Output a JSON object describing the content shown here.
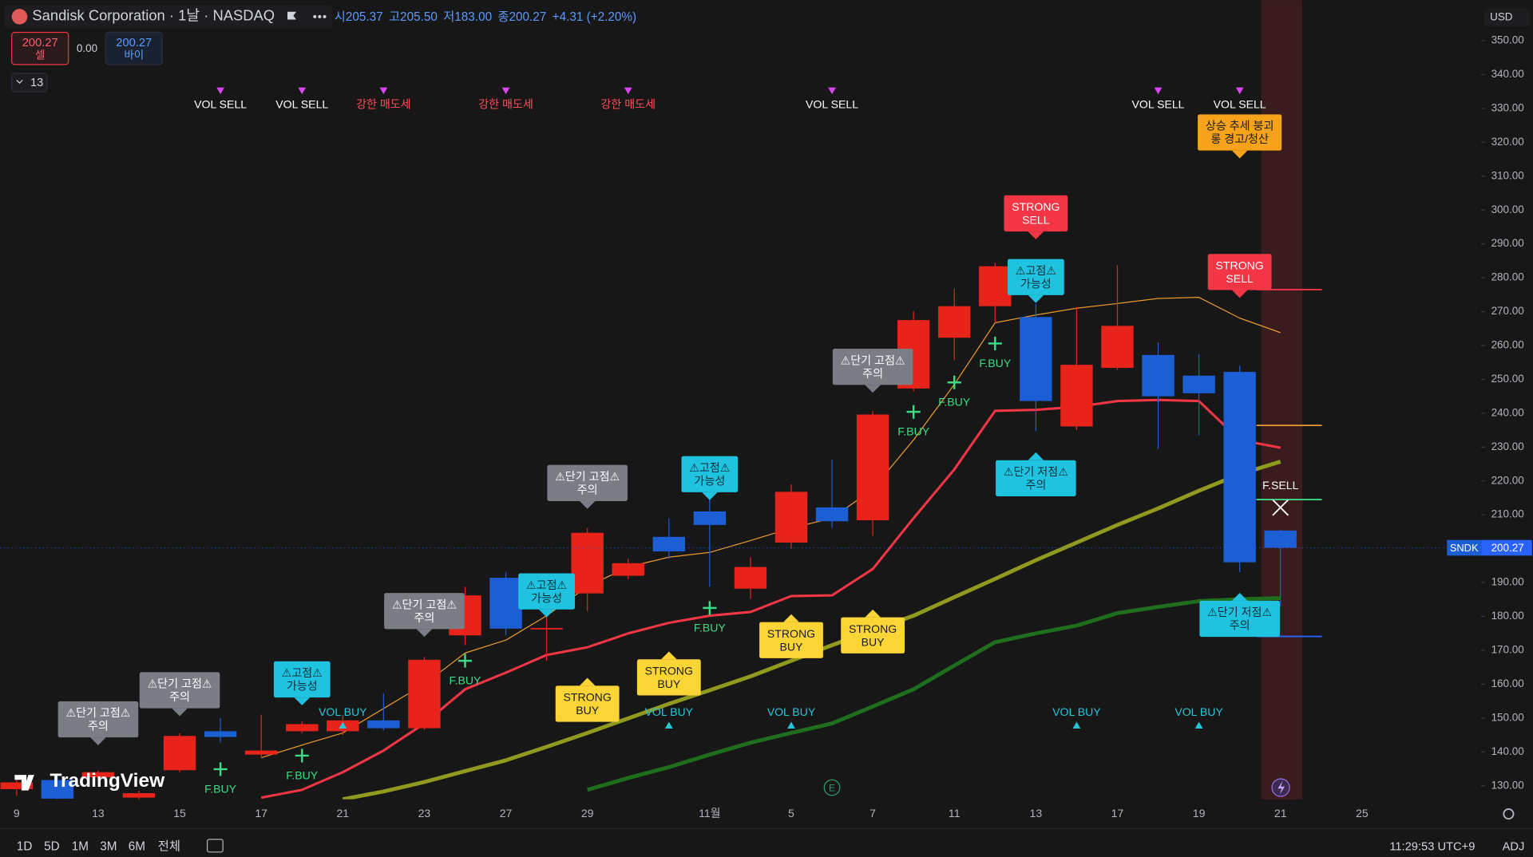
{
  "header": {
    "title": "Sandisk Corporation · 1날 · NASDAQ",
    "ohlc": [
      "시205.37",
      "고205.50",
      "저183.00",
      "종200.27"
    ],
    "change": "+4.31 (+2.20%)",
    "sell_price": "200.27",
    "sell_label": "셀",
    "spread": "0.00",
    "buy_price": "200.27",
    "buy_label": "바이",
    "indicator_count": "13",
    "currency": "USD"
  },
  "toolbar": {
    "ranges": [
      "1D",
      "5D",
      "1M",
      "3M",
      "6M",
      "전체"
    ],
    "clock": "11:29:53 UTC+9",
    "adj": "ADJ"
  },
  "logo": "TradingView",
  "earnings": "E",
  "symbol": "SNDK",
  "chart_data": {
    "type": "candlestick",
    "grid": false,
    "up_color": "#e8231a",
    "down_color": "#1c5fd4",
    "categories": [
      "9",
      null,
      "13",
      null,
      "15",
      null,
      "17",
      null,
      "21",
      null,
      "23",
      null,
      "27",
      null,
      "29",
      null,
      null,
      "11월",
      null,
      "5",
      null,
      "7",
      null,
      "11",
      null,
      "13",
      null,
      "17",
      null,
      "19",
      null,
      "21",
      null,
      "25"
    ],
    "open": [
      129,
      131.7,
      132.5,
      126.5,
      134.6,
      146.1,
      139.2,
      146.1,
      146.1,
      149.3,
      147,
      174.4,
      191.4,
      176.2,
      186.8,
      192,
      203.5,
      211,
      188.2,
      201.8,
      212.2,
      208.4,
      247.3,
      262.3,
      271.6,
      268.4,
      236.1,
      253.4,
      257.2,
      251.1,
      252.2,
      205.37,
      null,
      null
    ],
    "high": [
      132,
      133,
      134.5,
      128.5,
      145.5,
      150,
      151,
      149,
      151,
      157.3,
      168,
      188.8,
      193,
      186.5,
      206.1,
      197,
      209,
      216,
      197.5,
      219,
      226.3,
      240.7,
      270.1,
      276.8,
      284.5,
      272.4,
      271.3,
      283.7,
      260.9,
      257.5,
      254,
      205.5,
      null,
      null
    ],
    "low": [
      127,
      125.8,
      132,
      126,
      134,
      142.8,
      138.5,
      145.5,
      145,
      146.4,
      146.5,
      171.5,
      174.4,
      166.9,
      181.6,
      191,
      197,
      188.8,
      185.2,
      200,
      206.1,
      203.8,
      246.4,
      255.7,
      266.7,
      234.7,
      235,
      252.8,
      229.5,
      233.5,
      193.1,
      183,
      null,
      null
    ],
    "close": [
      131,
      126.2,
      134,
      127.8,
      144.7,
      144.4,
      140.4,
      148.2,
      149.3,
      147,
      167.2,
      186.2,
      176.4,
      176.6,
      204.7,
      195.7,
      199.2,
      207,
      194.6,
      216.8,
      208.1,
      239.6,
      267.5,
      271.6,
      283.4,
      243.6,
      254.3,
      265.8,
      245,
      245.9,
      196,
      200.27,
      null,
      null
    ],
    "lines": [
      {
        "color": "#8f9a1f",
        "width": 4,
        "values": [
          null,
          null,
          null,
          null,
          null,
          null,
          null,
          null,
          126,
          128.3,
          131.1,
          134.3,
          137.5,
          141.5,
          145.6,
          149.9,
          154.2,
          158.2,
          162.3,
          166.9,
          171.5,
          175.9,
          180.2,
          185.7,
          191.1,
          196.6,
          201.8,
          207,
          211.9,
          217.1,
          222,
          225.7,
          null,
          null
        ]
      },
      {
        "color": "#1e6e1e",
        "width": 4,
        "values": [
          null,
          null,
          null,
          null,
          null,
          null,
          null,
          null,
          null,
          null,
          null,
          null,
          null,
          null,
          128.8,
          132.3,
          135.5,
          139.2,
          142.7,
          145.6,
          148.4,
          153.4,
          158.5,
          165.5,
          172.4,
          175,
          177.3,
          181,
          182.8,
          184.5,
          185.1,
          185.4,
          null,
          null
        ]
      },
      {
        "color": "#e89a2c",
        "width": 1,
        "values": [
          null,
          null,
          null,
          null,
          null,
          null,
          138.3,
          142,
          145.6,
          152.8,
          160,
          169.2,
          173,
          180.2,
          188.8,
          194.6,
          197.5,
          198.9,
          202.4,
          206.1,
          209,
          217.6,
          232.1,
          248.5,
          266.7,
          269,
          271,
          272.4,
          273.9,
          274.2,
          268.1,
          263.8,
          null,
          null
        ]
      },
      {
        "color": "#f23645",
        "width": 2.5,
        "values": [
          null,
          null,
          null,
          null,
          null,
          null,
          126.5,
          128.8,
          134,
          140.4,
          148.4,
          158.5,
          163.4,
          168.6,
          170.9,
          175,
          178.1,
          180.2,
          181.3,
          186,
          186.2,
          194,
          209,
          223.4,
          240.7,
          241,
          241.9,
          243.6,
          243.9,
          243.6,
          232.1,
          229.8,
          null,
          null
        ]
      }
    ],
    "levels": [
      {
        "value": 276.5,
        "color": "#f23645"
      },
      {
        "value": 236.4,
        "color": "#e89a2c"
      },
      {
        "value": 214.5,
        "color": "#3ddc84"
      },
      {
        "value": 174.1,
        "color": "#2962ff"
      }
    ],
    "ylim": [
      126,
      362
    ],
    "yticks": [
      {
        "value": 130,
        "label": "130.00"
      },
      {
        "value": 140,
        "label": "140.00"
      },
      {
        "value": 150,
        "label": "150.00"
      },
      {
        "value": 160,
        "label": "160.00"
      },
      {
        "value": 170,
        "label": "170.00"
      },
      {
        "value": 180,
        "label": "180.00"
      },
      {
        "value": 190,
        "label": "190.00"
      },
      {
        "value": 200,
        "label": "200.00"
      },
      {
        "value": 210,
        "label": "210.00"
      },
      {
        "value": 220,
        "label": "220.00"
      },
      {
        "value": 230,
        "label": "230.00"
      },
      {
        "value": 240,
        "label": "240.00"
      },
      {
        "value": 250,
        "label": "250.00"
      },
      {
        "value": 260,
        "label": "260.00"
      },
      {
        "value": 270,
        "label": "270.00"
      },
      {
        "value": 280,
        "label": "280.00"
      },
      {
        "value": 290,
        "label": "290.00"
      },
      {
        "value": 300,
        "label": "300.00"
      },
      {
        "value": 310,
        "label": "310.00"
      },
      {
        "value": 320,
        "label": "320.00"
      },
      {
        "value": 330,
        "label": "330.00"
      },
      {
        "value": 340,
        "label": "340.00"
      },
      {
        "value": 350,
        "label": "350.00"
      }
    ],
    "signals": [
      {
        "style": "tri-down",
        "color": "#d946ef",
        "text_color": "#ffffff",
        "items": [
          {
            "at": 5,
            "y": 331,
            "lines": [
              "VOL SELL"
            ]
          },
          {
            "at": 7,
            "y": 331,
            "lines": [
              "VOL SELL"
            ]
          },
          {
            "at": 20,
            "y": 331,
            "lines": [
              "VOL SELL"
            ]
          },
          {
            "at": 28,
            "y": 331,
            "lines": [
              "VOL SELL"
            ]
          },
          {
            "at": 30,
            "y": 331,
            "lines": [
              "VOL SELL"
            ]
          }
        ]
      },
      {
        "style": "tri-down",
        "color": "#d946ef",
        "text_color": "#ff4d5a",
        "items": [
          {
            "at": 9,
            "y": 331,
            "lines": [
              "강한 매도세"
            ]
          },
          {
            "at": 12,
            "y": 331,
            "lines": [
              "강한 매도세"
            ]
          },
          {
            "at": 15,
            "y": 331,
            "lines": [
              "강한 매도세"
            ]
          }
        ]
      },
      {
        "style": "tri-up",
        "color": "#26c6da",
        "text_color": "#26c6da",
        "items": [
          {
            "at": 8,
            "y": 151.5,
            "lines": [
              "VOL BUY"
            ]
          },
          {
            "at": 16,
            "y": 151.5,
            "lines": [
              "VOL BUY"
            ]
          },
          {
            "at": 19,
            "y": 151.5,
            "lines": [
              "VOL BUY"
            ]
          },
          {
            "at": 26,
            "y": 151.5,
            "lines": [
              "VOL BUY"
            ]
          },
          {
            "at": 29,
            "y": 151.5,
            "lines": [
              "VOL BUY"
            ]
          }
        ]
      },
      {
        "style": "plus",
        "color": "#3ddc84",
        "text_color": "#3ddc84",
        "items": [
          {
            "at": 5,
            "y": 134.9,
            "lines": [
              "F.BUY"
            ]
          },
          {
            "at": 7,
            "y": 138.9,
            "lines": [
              "F.BUY"
            ]
          },
          {
            "at": 11,
            "y": 166.9,
            "lines": [
              "F.BUY"
            ]
          },
          {
            "at": 17,
            "y": 182.5,
            "lines": [
              "F.BUY"
            ]
          },
          {
            "at": 22,
            "y": 240.4,
            "lines": [
              "F.BUY"
            ]
          },
          {
            "at": 23,
            "y": 249.1,
            "lines": [
              "F.BUY"
            ]
          },
          {
            "at": 24,
            "y": 260.6,
            "lines": [
              "F.BUY"
            ]
          }
        ]
      },
      {
        "style": "box-down",
        "color": "#7b7d86",
        "text_color": "#ffffff",
        "items": [
          {
            "at": 2,
            "y": 149.6,
            "lines": [
              "⚠단기 고점⚠",
              "주의"
            ]
          },
          {
            "at": 4,
            "y": 158.2,
            "lines": [
              "⚠단기 고점⚠",
              "주의"
            ]
          },
          {
            "at": 10,
            "y": 181.6,
            "lines": [
              "⚠단기 고점⚠",
              "주의"
            ]
          },
          {
            "at": 14,
            "y": 219.4,
            "lines": [
              "⚠단기 고점⚠",
              "주의"
            ]
          },
          {
            "at": 21,
            "y": 253.7,
            "lines": [
              "⚠단기 고점⚠",
              "주의"
            ]
          }
        ]
      },
      {
        "style": "box-down",
        "color": "#1fc3e0",
        "text_color": "#0d2a35",
        "items": [
          {
            "at": 7,
            "y": 161.4,
            "lines": [
              "⚠고점⚠",
              "가능성"
            ]
          },
          {
            "at": 13,
            "y": 187.4,
            "lines": [
              "⚠고점⚠",
              "가능성"
            ]
          },
          {
            "at": 17,
            "y": 222,
            "lines": [
              "⚠고점⚠",
              "가능성"
            ]
          },
          {
            "at": 25,
            "y": 280.2,
            "lines": [
              "⚠고점⚠",
              "가능성"
            ]
          }
        ]
      },
      {
        "style": "box-up",
        "color": "#fbd536",
        "text_color": "#1a1a1a",
        "items": [
          {
            "at": 14,
            "y": 154.2,
            "lines": [
              "STRONG",
              "BUY"
            ]
          },
          {
            "at": 16,
            "y": 162,
            "lines": [
              "STRONG",
              "BUY"
            ]
          },
          {
            "at": 19,
            "y": 173,
            "lines": [
              "STRONG",
              "BUY"
            ]
          },
          {
            "at": 21,
            "y": 174.4,
            "lines": [
              "STRONG",
              "BUY"
            ]
          }
        ]
      },
      {
        "style": "box-down",
        "color": "#f23645",
        "text_color": "#ffffff",
        "items": [
          {
            "at": 25,
            "y": 299,
            "lines": [
              "STRONG",
              "SELL"
            ]
          },
          {
            "at": 30,
            "y": 281.7,
            "lines": [
              "STRONG",
              "SELL"
            ]
          }
        ]
      },
      {
        "style": "box-up",
        "color": "#1fc3e0",
        "text_color": "#0d2a35",
        "items": [
          {
            "at": 25,
            "y": 220.8,
            "lines": [
              "⚠단기 저점⚠",
              "주의"
            ]
          },
          {
            "at": 30,
            "y": 179.3,
            "lines": [
              "⚠단기 저점⚠",
              "주의"
            ]
          }
        ]
      },
      {
        "style": "box-down",
        "color": "#f7a21b",
        "text_color": "#1a1a1a",
        "items": [
          {
            "at": 30,
            "y": 322.9,
            "lines": [
              "상승 추세 붕괴",
              "롱 경고/청산"
            ]
          }
        ]
      },
      {
        "style": "cross",
        "color": "#ffffff",
        "text_color": "#ffffff",
        "items": [
          {
            "at": 31,
            "y": 218.5,
            "lines": [
              "F.SELL"
            ]
          }
        ]
      }
    ]
  }
}
